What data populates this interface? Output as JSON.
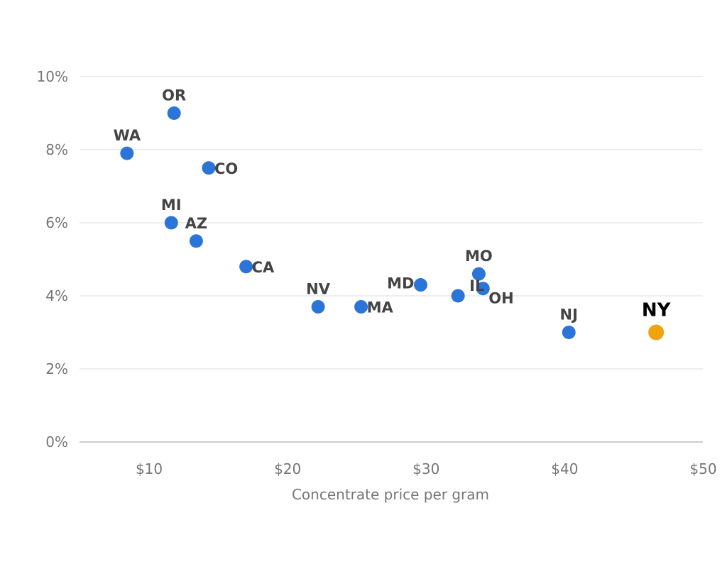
{
  "chart_data": {
    "type": "scatter",
    "title": "",
    "xlabel": "Concentrate price per gram",
    "ylabel": "",
    "xlim": [
      5,
      50
    ],
    "ylim": [
      0,
      10
    ],
    "x_ticks": [
      10,
      20,
      30,
      40,
      50
    ],
    "x_tick_labels": [
      "$10",
      "$20",
      "$30",
      "$40",
      "$50"
    ],
    "y_ticks": [
      0,
      2,
      4,
      6,
      8,
      10
    ],
    "y_tick_labels": [
      "0%",
      "2%",
      "4%",
      "6%",
      "8%",
      "10%"
    ],
    "grid": "horizontal",
    "colors": {
      "default": "#2b74d8",
      "highlight": "#f0a30a",
      "grid": "#dddddd",
      "axis": "#bbbbbb"
    },
    "points": [
      {
        "label": "OR",
        "x": 11.8,
        "y": 9.0,
        "label_pos": "above"
      },
      {
        "label": "WA",
        "x": 8.4,
        "y": 7.9,
        "label_pos": "above"
      },
      {
        "label": "CO",
        "x": 14.3,
        "y": 7.5,
        "label_pos": "right"
      },
      {
        "label": "MI",
        "x": 11.6,
        "y": 6.0,
        "label_pos": "above"
      },
      {
        "label": "AZ",
        "x": 13.4,
        "y": 5.5,
        "label_pos": "above"
      },
      {
        "label": "CA",
        "x": 17.0,
        "y": 4.8,
        "label_pos": "right"
      },
      {
        "label": "NV",
        "x": 22.2,
        "y": 3.7,
        "label_pos": "above"
      },
      {
        "label": "MA",
        "x": 25.3,
        "y": 3.7,
        "label_pos": "right"
      },
      {
        "label": "MD",
        "x": 29.6,
        "y": 4.3,
        "label_pos": "left"
      },
      {
        "label": "IL",
        "x": 32.3,
        "y": 4.0,
        "label_pos": "right-up"
      },
      {
        "label": "MO",
        "x": 33.8,
        "y": 4.6,
        "label_pos": "above"
      },
      {
        "label": "OH",
        "x": 34.1,
        "y": 4.2,
        "label_pos": "right-down"
      },
      {
        "label": "NJ",
        "x": 40.3,
        "y": 3.0,
        "label_pos": "above"
      },
      {
        "label": "NY",
        "x": 46.6,
        "y": 3.0,
        "label_pos": "above",
        "highlight": true
      }
    ]
  }
}
